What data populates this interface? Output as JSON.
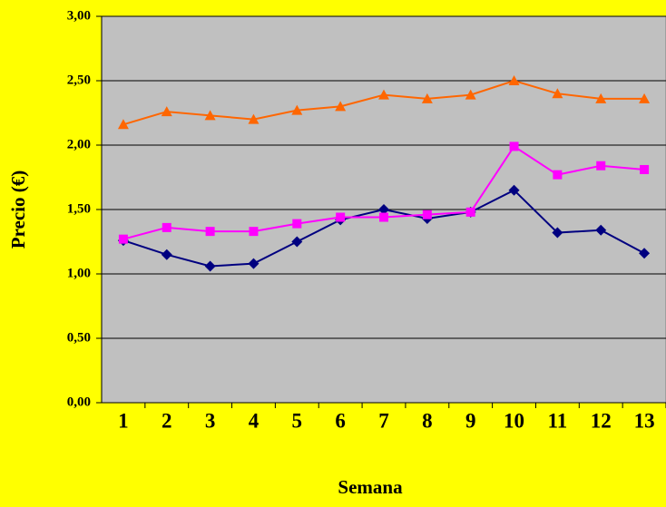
{
  "chart_data": {
    "type": "line",
    "x_label": "Semana",
    "y_label": "Precio (€)",
    "categories": [
      "1",
      "2",
      "3",
      "4",
      "5",
      "6",
      "7",
      "8",
      "9",
      "10",
      "11",
      "12",
      "13"
    ],
    "series": [
      {
        "color": "#000080",
        "marker": "diamond",
        "values": [
          1.26,
          1.15,
          1.06,
          1.08,
          1.25,
          1.42,
          1.5,
          1.43,
          1.48,
          1.65,
          1.32,
          1.34,
          1.16
        ]
      },
      {
        "color": "#FF00FF",
        "marker": "square",
        "values": [
          1.27,
          1.36,
          1.33,
          1.33,
          1.39,
          1.44,
          1.44,
          1.46,
          1.48,
          1.99,
          1.77,
          1.84,
          1.81
        ]
      },
      {
        "color": "#FF6600",
        "marker": "triangle",
        "values": [
          2.16,
          2.26,
          2.23,
          2.2,
          2.27,
          2.3,
          2.39,
          2.36,
          2.39,
          2.5,
          2.4,
          2.36,
          2.36
        ]
      }
    ],
    "ylim": [
      0,
      3
    ],
    "yticks": [
      {
        "value": 0,
        "label": "0,00"
      },
      {
        "value": 0.5,
        "label": "0,50"
      },
      {
        "value": 1,
        "label": "1,00"
      },
      {
        "value": 1.5,
        "label": "1,50"
      },
      {
        "value": 2,
        "label": "2,00"
      },
      {
        "value": 2.5,
        "label": "2,50"
      },
      {
        "value": 3,
        "label": "3,00"
      }
    ],
    "grid": true,
    "background": "#FFFF00",
    "plot_background": "#C0C0C0"
  }
}
